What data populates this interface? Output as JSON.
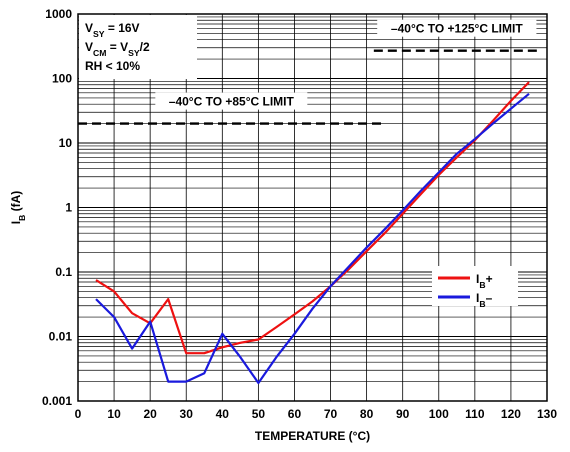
{
  "chart_data": {
    "type": "line",
    "xlabel": "TEMPERATURE (°C)",
    "ylabel": {
      "main": "I",
      "sub": "B",
      "rest": " (fA)"
    },
    "xlim": [
      0,
      130
    ],
    "ylim": [
      0.001,
      1000
    ],
    "yscale": "log",
    "x_ticks": [
      0,
      10,
      20,
      30,
      40,
      50,
      60,
      70,
      80,
      90,
      100,
      110,
      120,
      130
    ],
    "y_ticks": [
      {
        "value": 0.001,
        "label": "0.001"
      },
      {
        "value": 0.01,
        "label": "0.01"
      },
      {
        "value": 0.1,
        "label": "0.1"
      },
      {
        "value": 1,
        "label": "1"
      },
      {
        "value": 10,
        "label": "10"
      },
      {
        "value": 100,
        "label": "100"
      },
      {
        "value": 1000,
        "label": "1000"
      }
    ],
    "grid": true,
    "legend_position": "right",
    "series": [
      {
        "name": {
          "main": "I",
          "sub": "B",
          "rest": "+"
        },
        "color": "#ee1111",
        "x": [
          5,
          10,
          15,
          20,
          25,
          30,
          35,
          40,
          45,
          50,
          55,
          60,
          65,
          70,
          75,
          80,
          85,
          90,
          95,
          100,
          105,
          110,
          115,
          120,
          125
        ],
        "y": [
          0.075,
          0.05,
          0.023,
          0.016,
          0.038,
          0.0055,
          0.0055,
          0.0068,
          0.008,
          0.009,
          0.014,
          0.022,
          0.035,
          0.06,
          0.11,
          0.21,
          0.4,
          0.8,
          1.6,
          3.2,
          6.0,
          11.0,
          22.0,
          45.0,
          88.0
        ]
      },
      {
        "name": {
          "main": "I",
          "sub": "B",
          "rest": "–"
        },
        "color": "#1a1add",
        "x": [
          5,
          10,
          15,
          20,
          25,
          30,
          35,
          40,
          45,
          50,
          55,
          60,
          65,
          70,
          75,
          80,
          85,
          90,
          95,
          100,
          105,
          110,
          115,
          120,
          125
        ],
        "y": [
          0.038,
          0.02,
          0.0065,
          0.017,
          0.002,
          0.002,
          0.0027,
          0.011,
          0.0048,
          0.0019,
          0.0048,
          0.011,
          0.027,
          0.06,
          0.12,
          0.24,
          0.46,
          0.9,
          1.8,
          3.5,
          6.8,
          11.5,
          20.0,
          34.0,
          58.0
        ]
      }
    ],
    "limits": [
      {
        "label": "–40°C TO +85°C LIMIT",
        "x_start": 0,
        "x_end": 85,
        "y": 20
      },
      {
        "label": "–40°C TO +125°C LIMIT",
        "x_start": 82,
        "x_end": 128,
        "y": 270
      }
    ],
    "conditions": [
      {
        "main": "V",
        "sub": "SY",
        "rest": " = 16V"
      },
      {
        "main": "V",
        "sub": "CM",
        "rest": " = V",
        "sub2": "SY",
        "rest2": "/2"
      },
      {
        "main": "RH < 10%"
      }
    ]
  }
}
